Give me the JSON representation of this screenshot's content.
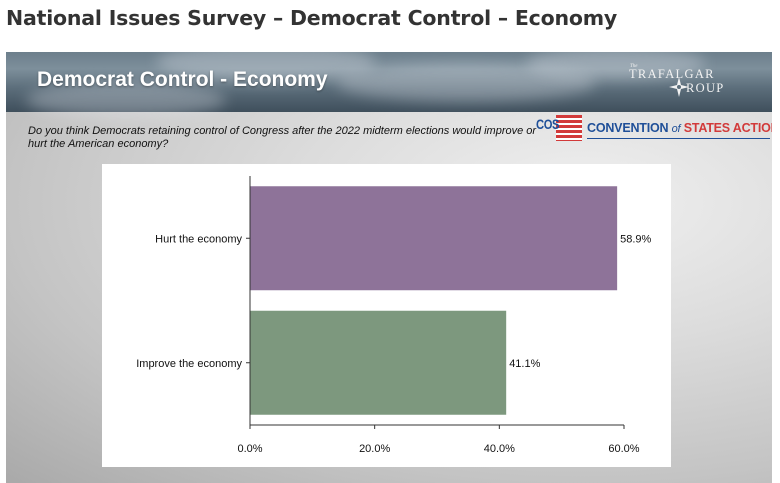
{
  "page_title": "National Issues Survey – Democrat Control – Economy",
  "slide": {
    "banner_title": "Democrat Control - Economy",
    "trafalgar_logo": {
      "small": "The",
      "top": "TRAFALGAR",
      "bottom": "ROUP"
    },
    "question": "Do you think Democrats retaining control of Congress after the 2022 midterm elections would improve or hurt the American economy?",
    "cos_logo": {
      "letters": "COS",
      "name_part1": "CONVENTION",
      "name_part2": "of",
      "name_part3": "STATES ACTION"
    }
  },
  "colors": {
    "hurt_bar": "#8e7399",
    "improve_bar": "#7d987e",
    "cos_blue": "#1f4f98",
    "cos_red": "#d23a3a"
  },
  "chart_data": {
    "type": "bar",
    "orientation": "horizontal",
    "title": "Democrat Control - Economy",
    "categories": [
      "Hurt the economy",
      "Improve the economy"
    ],
    "values": [
      58.9,
      41.1
    ],
    "data_labels": [
      "58.9%",
      "41.1%"
    ],
    "xlim": [
      0,
      60
    ],
    "xticks": [
      0,
      20,
      40,
      60
    ],
    "xtick_labels": [
      "0.0%",
      "20.0%",
      "40.0%",
      "60.0%"
    ],
    "xlabel": "",
    "ylabel": "",
    "grid": false
  }
}
